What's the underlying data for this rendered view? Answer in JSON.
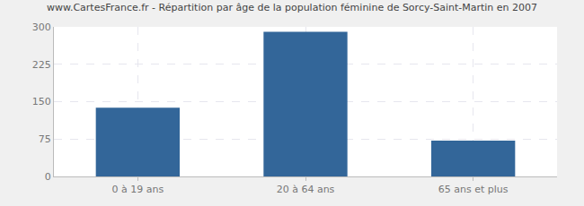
{
  "chart_data": {
    "type": "bar",
    "title": "www.CartesFrance.fr - Répartition par âge de la population féminine de Sorcy-Saint-Martin en 2007",
    "categories": [
      "0 à 19 ans",
      "20 à 64 ans",
      "65 ans et plus"
    ],
    "values": [
      138,
      290,
      72
    ],
    "color": "#336699",
    "ylim": [
      0,
      300
    ],
    "yticks": [
      0,
      75,
      150,
      225,
      300
    ],
    "grid": true
  }
}
